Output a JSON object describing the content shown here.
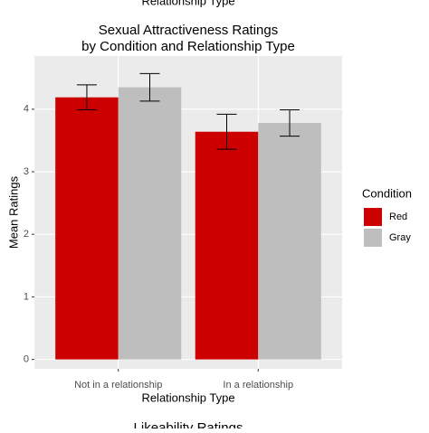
{
  "chart_data": {
    "type": "bar",
    "title": [
      "Sexual Attractiveness Ratings",
      "by Condition and Relationship Type"
    ],
    "annotations": [
      "Relationship Type",
      "Likeability Ratings"
    ],
    "x_label": "Relationship Type",
    "y_label": "Mean Ratings",
    "categories": [
      "Not in a relationship",
      "In a relationship"
    ],
    "legend_title": "Condition",
    "legend": "right",
    "series": [
      {
        "name": "Red",
        "color": "#cc0000",
        "values": [
          4.19,
          3.64
        ],
        "errors": [
          0.2,
          0.28
        ]
      },
      {
        "name": "Gray",
        "color": "#bebebe",
        "values": [
          4.35,
          3.78
        ],
        "errors": [
          0.22,
          0.21
        ]
      }
    ],
    "ylim": [
      -0.15,
      4.85
    ],
    "yticks": [
      0,
      1,
      2,
      3,
      4
    ],
    "grid": true
  }
}
